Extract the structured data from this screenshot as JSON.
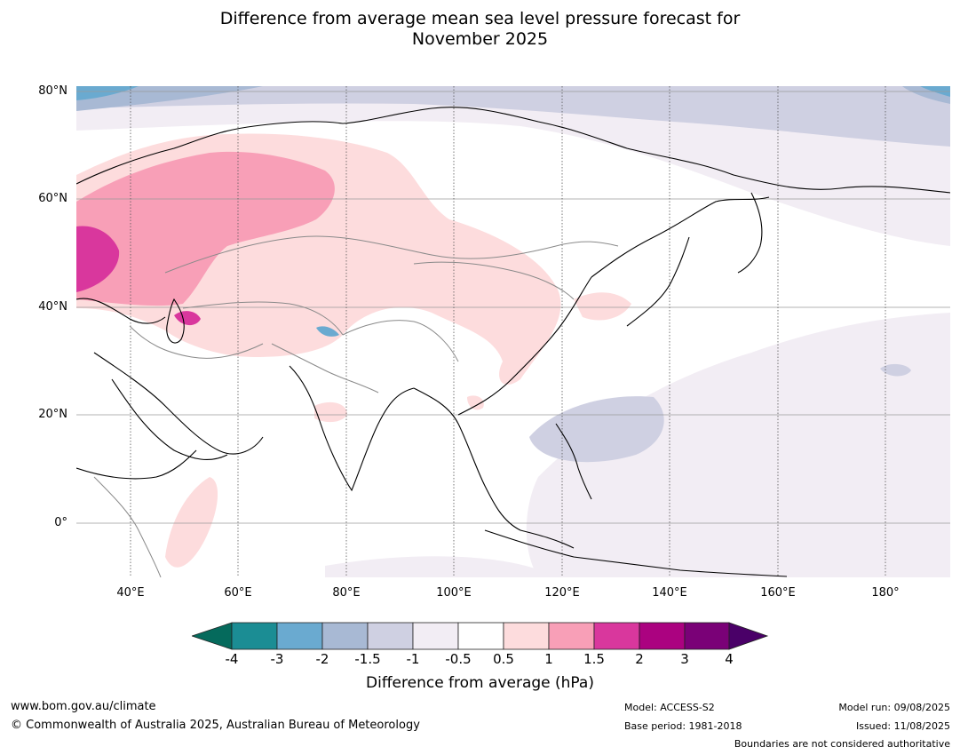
{
  "title_line1": "Difference from average mean sea level pressure forecast for",
  "title_line2": "November 2025",
  "map": {
    "lat_labels": [
      "80°N",
      "60°N",
      "40°N",
      "20°N",
      "0°"
    ],
    "lon_labels": [
      "40°E",
      "60°E",
      "80°E",
      "100°E",
      "120°E",
      "140°E",
      "160°E",
      "180°"
    ],
    "lon_range": [
      30,
      192
    ],
    "lat_range": [
      -10,
      81
    ]
  },
  "colorbar": {
    "ticks": [
      "-4",
      "-3",
      "-2",
      "-1.5",
      "-1",
      "-0.5",
      "0.5",
      "1",
      "1.5",
      "2",
      "3",
      "4"
    ],
    "colors": {
      "lt_-4": "#056a5c",
      "-4_-3": "#1b8d94",
      "-3_-2": "#6aaad0",
      "-2_-1.5": "#a8b9d4",
      "-1.5_-1": "#cfd0e2",
      "-1_-0.5": "#f2edf4",
      "-0.5_0.5": "#ffffff",
      "0.5_1": "#fddcdd",
      "1_1.5": "#f89fb7",
      "1.5_2": "#d9379d",
      "2_3": "#ab0280",
      "3_4": "#7a0177",
      "gt_4": "#4a0068"
    },
    "label": "Difference from average (hPa)"
  },
  "footer": {
    "url": "www.bom.gov.au/climate",
    "copyright": "© Commonwealth of Australia 2025, Australian Bureau of Meteorology",
    "model": "Model: ACCESS-S2",
    "base_period": "Base period: 1981-2018",
    "model_run": "Model run: 09/08/2025",
    "issued": "Issued: 11/08/2025",
    "disclaimer": "Boundaries are not considered authoritative"
  }
}
